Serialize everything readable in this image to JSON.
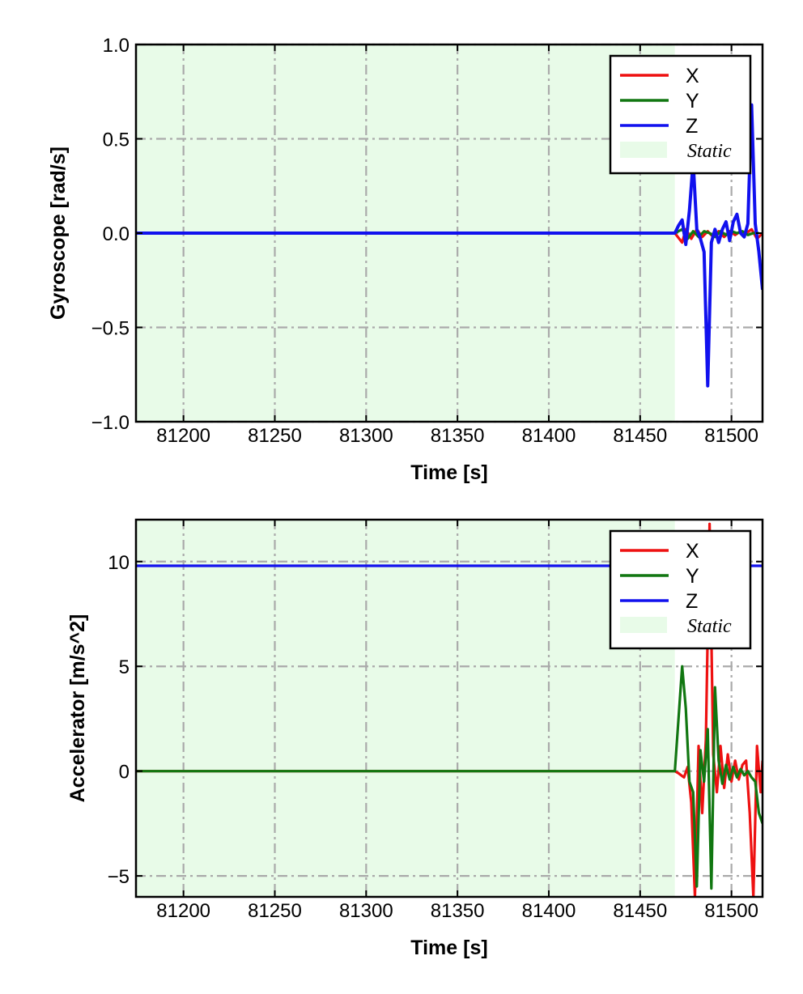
{
  "colors": {
    "x": "#ee1111",
    "y": "#117711",
    "z": "#1111ee",
    "static_fill": "#e8fbe8",
    "grid": "#aaaaaa"
  },
  "chart_data": [
    {
      "type": "line",
      "xlabel": "Time [s]",
      "ylabel": "Gyroscope [rad/s]",
      "xlim": [
        81174,
        81517
      ],
      "ylim": [
        -1.0,
        1.0
      ],
      "xticks": [
        81200,
        81250,
        81300,
        81350,
        81400,
        81450,
        81500
      ],
      "yticks": [
        -1.0,
        -0.5,
        0.0,
        0.5,
        1.0
      ],
      "yticklabels": [
        "−1.0",
        "−0.5",
        "0.0",
        "0.5",
        "1.0"
      ],
      "xticklabels": [
        "81200",
        "81250",
        "81300",
        "81350",
        "81400",
        "81450",
        "81500"
      ],
      "grid": true,
      "static_region": [
        81174,
        81469
      ],
      "legend": {
        "position": "top-right",
        "entries": [
          "X",
          "Y",
          "Z",
          "Static"
        ]
      },
      "series": [
        {
          "name": "X",
          "color": "x",
          "points": [
            [
              81174,
              0.0
            ],
            [
              81469,
              0.0
            ],
            [
              81473,
              -0.05
            ],
            [
              81475,
              0.02
            ],
            [
              81478,
              -0.03
            ],
            [
              81481,
              0.02
            ],
            [
              81484,
              -0.02
            ],
            [
              81487,
              0.01
            ],
            [
              81490,
              -0.02
            ],
            [
              81493,
              0.01
            ],
            [
              81496,
              -0.02
            ],
            [
              81499,
              0.01
            ],
            [
              81502,
              -0.01
            ],
            [
              81505,
              0.01
            ],
            [
              81508,
              0.0
            ],
            [
              81511,
              0.02
            ],
            [
              81514,
              -0.03
            ],
            [
              81517,
              0.0
            ]
          ]
        },
        {
          "name": "Y",
          "color": "y",
          "points": [
            [
              81174,
              0.0
            ],
            [
              81469,
              0.0
            ],
            [
              81473,
              0.02
            ],
            [
              81476,
              -0.03
            ],
            [
              81479,
              0.01
            ],
            [
              81482,
              -0.02
            ],
            [
              81485,
              0.01
            ],
            [
              81488,
              0.0
            ],
            [
              81491,
              -0.02
            ],
            [
              81494,
              0.01
            ],
            [
              81497,
              -0.01
            ],
            [
              81500,
              0.01
            ],
            [
              81503,
              0.0
            ],
            [
              81506,
              0.01
            ],
            [
              81509,
              -0.01
            ],
            [
              81512,
              0.0
            ],
            [
              81515,
              0.0
            ]
          ]
        },
        {
          "name": "Z",
          "color": "z",
          "points": [
            [
              81174,
              0.0
            ],
            [
              81469,
              0.0
            ],
            [
              81471,
              0.04
            ],
            [
              81473,
              0.07
            ],
            [
              81475,
              -0.06
            ],
            [
              81477,
              0.12
            ],
            [
              81479,
              0.38
            ],
            [
              81481,
              0.02
            ],
            [
              81483,
              -0.03
            ],
            [
              81485,
              -0.1
            ],
            [
              81487,
              -0.81
            ],
            [
              81489,
              -0.05
            ],
            [
              81491,
              0.02
            ],
            [
              81493,
              -0.05
            ],
            [
              81495,
              0.02
            ],
            [
              81497,
              0.06
            ],
            [
              81499,
              -0.04
            ],
            [
              81501,
              0.06
            ],
            [
              81503,
              0.1
            ],
            [
              81505,
              0.0
            ],
            [
              81507,
              -0.02
            ],
            [
              81509,
              0.05
            ],
            [
              81511,
              0.68
            ],
            [
              81513,
              0.05
            ],
            [
              81515,
              -0.1
            ],
            [
              81517,
              -0.3
            ]
          ]
        }
      ]
    },
    {
      "type": "line",
      "xlabel": "Time [s]",
      "ylabel": "Accelerator [m/s^2]",
      "xlim": [
        81174,
        81517
      ],
      "ylim": [
        -6.0,
        12.0
      ],
      "xticks": [
        81200,
        81250,
        81300,
        81350,
        81400,
        81450,
        81500
      ],
      "yticks": [
        -5,
        0,
        5,
        10
      ],
      "yticklabels": [
        "−5",
        "0",
        "5",
        "10"
      ],
      "xticklabels": [
        "81200",
        "81250",
        "81300",
        "81350",
        "81400",
        "81450",
        "81500"
      ],
      "grid": true,
      "static_region": [
        81174,
        81469
      ],
      "legend": {
        "position": "top-right",
        "entries": [
          "X",
          "Y",
          "Z",
          "Static"
        ]
      },
      "series": [
        {
          "name": "X",
          "color": "x",
          "points": [
            [
              81174,
              0.0
            ],
            [
              81469,
              0.0
            ],
            [
              81471,
              -0.1
            ],
            [
              81474,
              -0.3
            ],
            [
              81476,
              0.2
            ],
            [
              81478,
              -1.5
            ],
            [
              81480,
              -6.0
            ],
            [
              81482,
              1.2
            ],
            [
              81484,
              -2.0
            ],
            [
              81486,
              1.5
            ],
            [
              81488,
              11.8
            ],
            [
              81490,
              0.8
            ],
            [
              81492,
              -1.0
            ],
            [
              81494,
              1.2
            ],
            [
              81496,
              -0.8
            ],
            [
              81498,
              0.8
            ],
            [
              81500,
              -0.5
            ],
            [
              81502,
              0.5
            ],
            [
              81504,
              -0.4
            ],
            [
              81506,
              0.3
            ],
            [
              81508,
              0.5
            ],
            [
              81510,
              -2.0
            ],
            [
              81512,
              -6.0
            ],
            [
              81514,
              1.2
            ],
            [
              81516,
              -1.0
            ],
            [
              81517,
              0.5
            ]
          ]
        },
        {
          "name": "Y",
          "color": "y",
          "points": [
            [
              81174,
              0.0
            ],
            [
              81469,
              0.0
            ],
            [
              81471,
              2.5
            ],
            [
              81473,
              5.0
            ],
            [
              81475,
              3.0
            ],
            [
              81477,
              -0.5
            ],
            [
              81479,
              -1.0
            ],
            [
              81481,
              -5.5
            ],
            [
              81483,
              1.0
            ],
            [
              81485,
              -0.5
            ],
            [
              81487,
              2.0
            ],
            [
              81489,
              -5.6
            ],
            [
              81491,
              4.0
            ],
            [
              81493,
              0.5
            ],
            [
              81495,
              -0.6
            ],
            [
              81497,
              0.3
            ],
            [
              81499,
              -0.4
            ],
            [
              81501,
              0.2
            ],
            [
              81503,
              -0.3
            ],
            [
              81505,
              0.1
            ],
            [
              81507,
              -0.2
            ],
            [
              81509,
              0.0
            ],
            [
              81511,
              -0.3
            ],
            [
              81513,
              -0.5
            ],
            [
              81515,
              -2.0
            ],
            [
              81517,
              -2.5
            ]
          ]
        },
        {
          "name": "Z",
          "color": "z",
          "points": [
            [
              81174,
              9.8
            ],
            [
              81517,
              9.8
            ]
          ]
        }
      ]
    }
  ]
}
